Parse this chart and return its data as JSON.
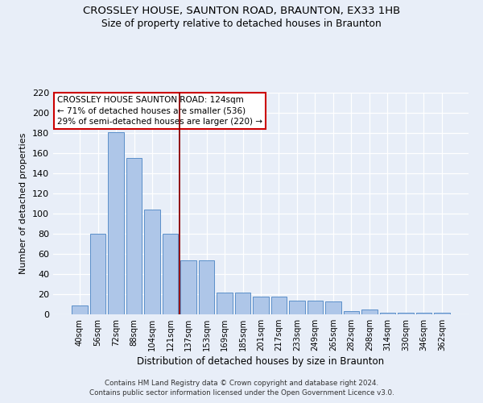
{
  "title": "CROSSLEY HOUSE, SAUNTON ROAD, BRAUNTON, EX33 1HB",
  "subtitle": "Size of property relative to detached houses in Braunton",
  "xlabel": "Distribution of detached houses by size in Braunton",
  "ylabel": "Number of detached properties",
  "categories": [
    "40sqm",
    "56sqm",
    "72sqm",
    "88sqm",
    "104sqm",
    "121sqm",
    "137sqm",
    "153sqm",
    "169sqm",
    "185sqm",
    "201sqm",
    "217sqm",
    "233sqm",
    "249sqm",
    "265sqm",
    "282sqm",
    "298sqm",
    "314sqm",
    "330sqm",
    "346sqm",
    "362sqm"
  ],
  "values": [
    9,
    80,
    181,
    155,
    104,
    80,
    54,
    54,
    22,
    22,
    18,
    18,
    14,
    14,
    13,
    3,
    5,
    2,
    2,
    2,
    2
  ],
  "bar_color": "#aec6e8",
  "bar_edge_color": "#5b8fc9",
  "vline_x": 5.5,
  "vline_color": "#8b0000",
  "annotation_lines": [
    "CROSSLEY HOUSE SAUNTON ROAD: 124sqm",
    "← 71% of detached houses are smaller (536)",
    "29% of semi-detached houses are larger (220) →"
  ],
  "ylim": [
    0,
    220
  ],
  "yticks": [
    0,
    20,
    40,
    60,
    80,
    100,
    120,
    140,
    160,
    180,
    200,
    220
  ],
  "footer": "Contains HM Land Registry data © Crown copyright and database right 2024.\nContains public sector information licensed under the Open Government Licence v3.0.",
  "bg_color": "#e8eef8",
  "plot_bg_color": "#e8eef8"
}
